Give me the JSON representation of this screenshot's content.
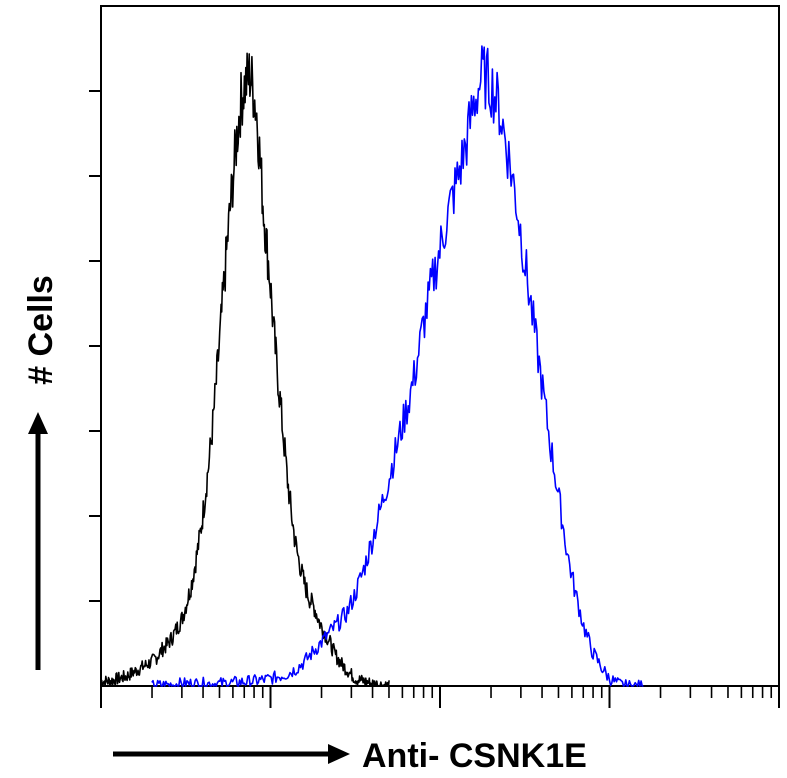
{
  "chart_data": {
    "type": "line",
    "title": "",
    "xlabel": "Anti- CSNK1E",
    "ylabel": "# Cells",
    "x_scale": "log",
    "x_decades": 4,
    "y_major_ticks": 7,
    "grid": false,
    "legend": "none",
    "series": [
      {
        "color": "#000000",
        "x": [
          0.0,
          0.05,
          0.1,
          0.15,
          0.2,
          0.25,
          0.3,
          0.33,
          0.36,
          0.39,
          0.42,
          0.45,
          0.48,
          0.5,
          0.52,
          0.54,
          0.56,
          0.58,
          0.6,
          0.62,
          0.64,
          0.66,
          0.68,
          0.7,
          0.72,
          0.74,
          0.76,
          0.78,
          0.8,
          0.82,
          0.84,
          0.86,
          0.88,
          0.9,
          0.92,
          0.94,
          0.96,
          0.98,
          1.0,
          1.02,
          1.04,
          1.06,
          1.08,
          1.1,
          1.12,
          1.14,
          1.16,
          1.18,
          1.2,
          1.23,
          1.26,
          1.29,
          1.32,
          1.35,
          1.38,
          1.42,
          1.46,
          1.5,
          1.55,
          1.6,
          1.65,
          1.7
        ],
        "y": [
          0.2,
          0.2,
          0.3,
          0.4,
          0.6,
          0.8,
          1.0,
          1.2,
          1.5,
          1.7,
          2.0,
          2.4,
          2.8,
          3.3,
          3.8,
          4.4,
          5.2,
          6.0,
          7.0,
          8.2,
          9.4,
          10.8,
          12.5,
          14.2,
          16.0,
          17.8,
          19.5,
          21.0,
          22.5,
          23.8,
          24.6,
          24.9,
          25.2,
          24.5,
          23.5,
          21.5,
          19.5,
          18.0,
          16.5,
          14.5,
          13.0,
          11.5,
          10.0,
          8.5,
          7.3,
          6.2,
          5.4,
          4.8,
          4.2,
          3.6,
          3.2,
          2.6,
          2.2,
          1.8,
          1.3,
          0.9,
          0.6,
          0.3,
          0.2,
          0.1,
          0.05,
          0.0
        ]
      },
      {
        "color": "#0000ff",
        "x": [
          0.3,
          0.5,
          0.7,
          0.9,
          1.0,
          1.1,
          1.15,
          1.2,
          1.25,
          1.3,
          1.35,
          1.4,
          1.45,
          1.5,
          1.55,
          1.6,
          1.65,
          1.7,
          1.75,
          1.8,
          1.85,
          1.9,
          1.95,
          2.0,
          2.05,
          2.1,
          2.15,
          2.2,
          2.25,
          2.3,
          2.35,
          2.4,
          2.45,
          2.5,
          2.55,
          2.6,
          2.65,
          2.7,
          2.75,
          2.8,
          2.85,
          2.9,
          2.95,
          3.0,
          3.05,
          3.1,
          3.2
        ],
        "y": [
          0.0,
          0.1,
          0.1,
          0.2,
          0.3,
          0.5,
          0.7,
          1.0,
          1.4,
          1.8,
          2.2,
          2.6,
          3.0,
          3.8,
          4.8,
          6.0,
          7.3,
          8.6,
          10.0,
          11.3,
          12.8,
          14.8,
          16.5,
          18.0,
          19.5,
          20.8,
          22.2,
          24.0,
          25.2,
          24.8,
          23.8,
          22.0,
          20.0,
          17.5,
          15.0,
          12.5,
          10.0,
          7.8,
          5.5,
          3.8,
          2.4,
          1.4,
          0.8,
          0.3,
          0.1,
          0.0,
          0.0
        ]
      }
    ]
  }
}
